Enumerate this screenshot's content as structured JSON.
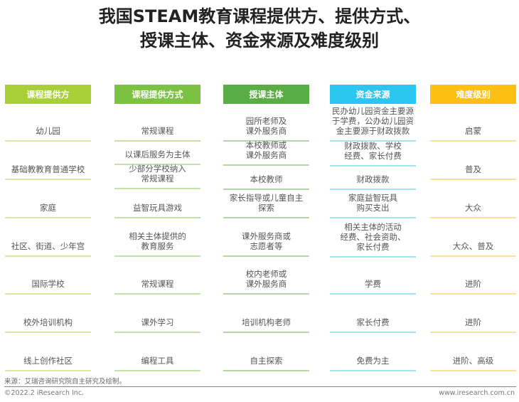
{
  "title": {
    "line1": "我国STEAM教育课程提供方、提供方式、",
    "line2": "授课主体、资金来源及难度级别"
  },
  "columns": [
    {
      "header": "课程提供方",
      "color": "#a8cf38",
      "line": "#d6e8a4",
      "cells": [
        "幼儿园",
        "基础教教育普通学校",
        "家庭",
        "社区、街道、少年宫",
        "国际学校",
        "校外培训机构",
        "线上创作社区"
      ]
    },
    {
      "header": "课程提供方式",
      "color": "#7cc242",
      "line": "#c4e2a8",
      "cells": [
        "常规课程",
        "以课后服务为主体",
        "少部分学校纳入\n常规课程",
        "益智玩具游戏",
        "相关主体提供的\n教育服务",
        "常规课程",
        "课外学习",
        "编程工具"
      ]
    },
    {
      "header": "授课主体",
      "color": "#5aad45",
      "line": "#b2d6a5",
      "cells": [
        "园所老师及\n课外服务商",
        "本校教师或\n课外服务商",
        "本校教师",
        "家长指导或儿童自主\n探索",
        "课外服务商或\n志愿者等",
        "校内老师或\n课外服务商",
        "培训机构老师",
        "自主探索"
      ]
    },
    {
      "header": "资金来源",
      "color": "#2ac6ef",
      "line": "#a8e2f3",
      "cells": [
        "民办幼儿园资金主要源\n于学费，公办幼儿园资\n金主要源于财政拨款",
        "财政拨款、学校\n经费、家长付费",
        "财政拨款",
        "家庭益智玩具\n购买支出",
        "相关主体的活动\n经费、社会资助、\n家长付费",
        "学费",
        "家长付费",
        "免费为主"
      ]
    },
    {
      "header": "难度级别",
      "color": "#fdc012",
      "line": "#fbe199",
      "cells": [
        "启蒙",
        "普及",
        "大众",
        "大众、普及",
        "进阶",
        "进阶",
        "进阶、高级"
      ]
    }
  ],
  "footer": {
    "source": "来源：艾瑞咨询研究院自主研究及绘制。",
    "copyright": "©2022.2 iResearch Inc.",
    "website": "www.iresearch.com.cn"
  }
}
